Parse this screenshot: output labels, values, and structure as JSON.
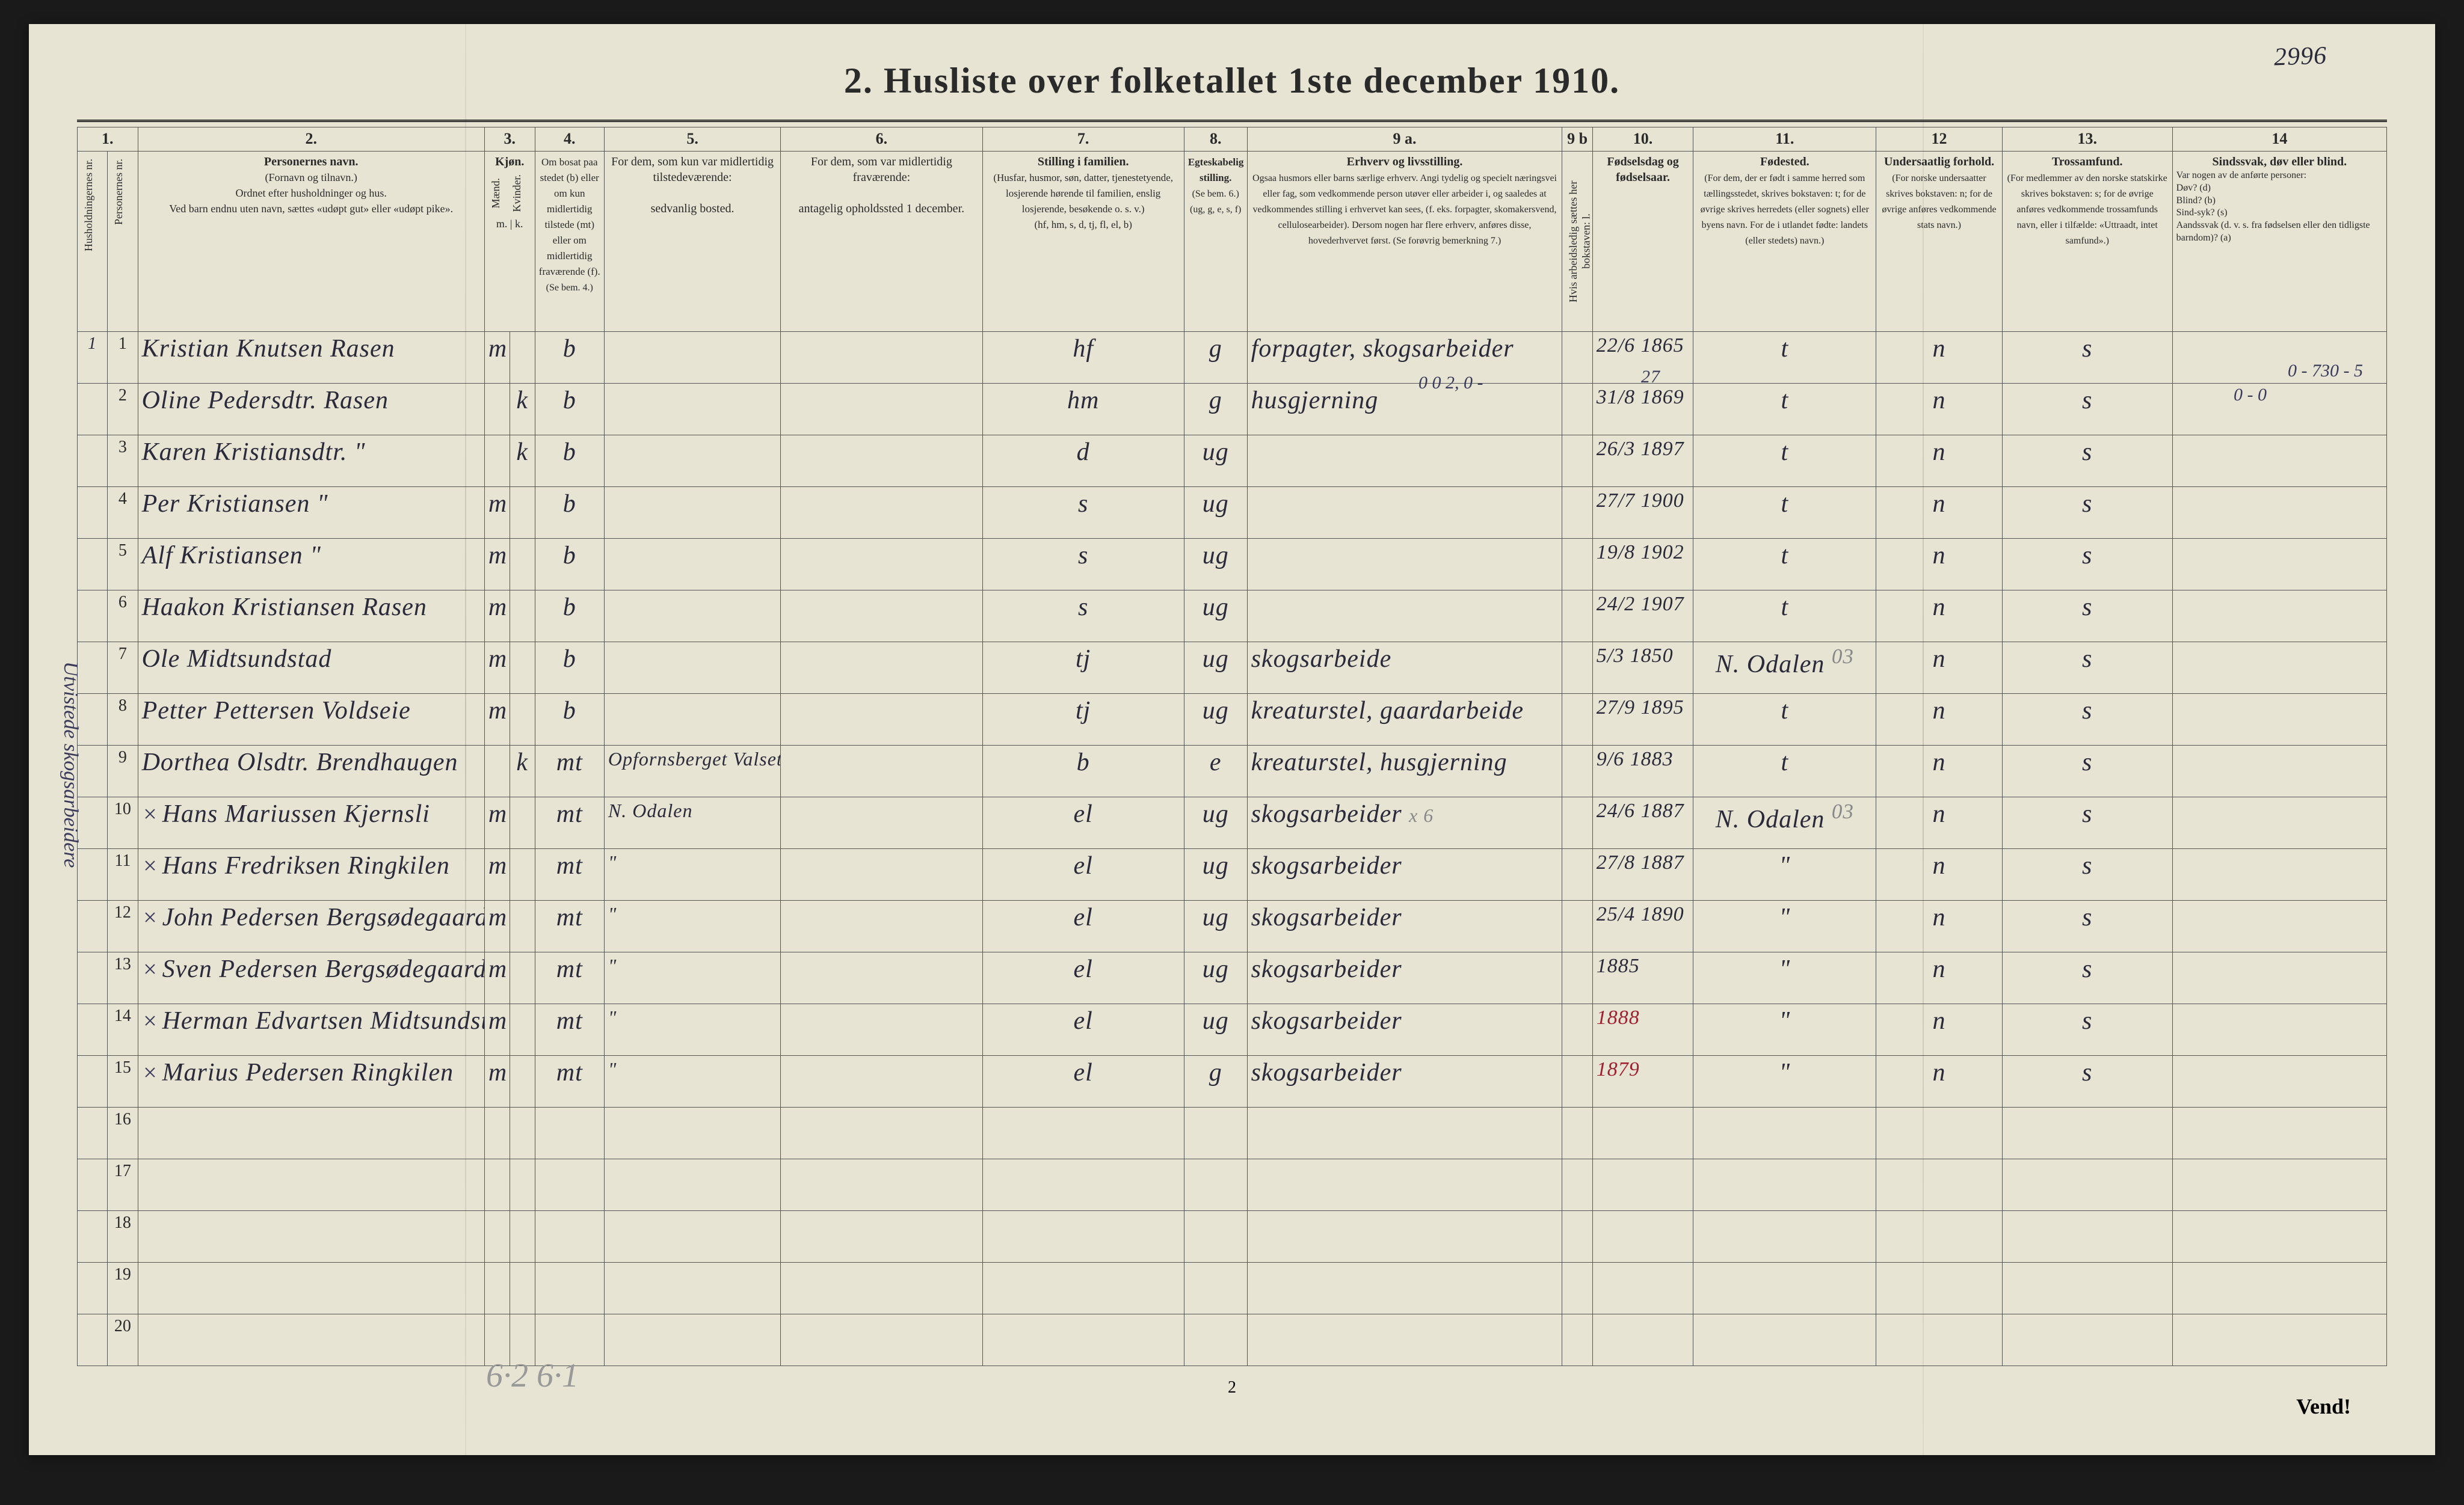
{
  "title": "2.  Husliste over folketallet 1ste december 1910.",
  "page_ink": "2996",
  "colors": {
    "paper": "#e8e4d4",
    "ink": "#2a2a3a",
    "pencil": "#888888",
    "red": "#a02030",
    "blue": "#3040a0",
    "border": "#555555"
  },
  "column_numbers": [
    "1.",
    "2.",
    "3.",
    "4.",
    "5.",
    "6.",
    "7.",
    "8.",
    "9 a.",
    "9 b",
    "10.",
    "11.",
    "12",
    "13.",
    "14"
  ],
  "headers": {
    "hushold": "Husholdningernes nr.",
    "person": "Personernes nr.",
    "name_title": "Personernes navn.",
    "name_sub": "(Fornavn og tilnavn.)\nOrdnet efter husholdninger og hus.\nVed barn endnu uten navn, sættes «udøpt gut» eller «udøpt pike».",
    "sex": "Kjøn.",
    "sex_m": "Mænd.",
    "sex_k": "Kvinder.",
    "sex_sub": "m. | k.",
    "bosat_title": "Om bosat paa stedet (b) eller om kun midlertidig tilstede (mt) eller om midlertidig fraværende (f).",
    "bosat_sub": "(Se bem. 4.)",
    "midlertidig_title": "For dem, som kun var midlertidig tilstedeværende:",
    "midlertidig_sub": "sedvanlig bosted.",
    "fravar_title": "For dem, som var midlertidig fraværende:",
    "fravar_sub": "antagelig opholdssted 1 december.",
    "stilling_fam_title": "Stilling i familien.",
    "stilling_fam_sub": "(Husfar, husmor, søn, datter, tjenestetyende, losjerende hørende til familien, enslig losjerende, besøkende o. s. v.)\n(hf, hm, s, d, tj, fl, el, b)",
    "egt_title": "Egteskabelig stilling.",
    "egt_sub": "(Se bem. 6.)\n(ug, g, e, s, f)",
    "erhverv_title": "Erhverv og livsstilling.",
    "erhverv_sub": "Ogsaa husmors eller barns særlige erhverv. Angi tydelig og specielt næringsvei eller fag, som vedkommende person utøver eller arbeider i, og saaledes at vedkommendes stilling i erhvervet kan sees, (f. eks. forpagter, skomakersvend, cellulosearbeider). Dersom nogen har flere erhverv, anføres disse, hovederhvervet først.\n(Se forøvrig bemerkning 7.)",
    "arb": "Hvis arbeidsledig sættes her bokstaven: l.",
    "fodsel_title": "Fødselsdag og fødselsaar.",
    "fodested_title": "Fødested.",
    "fodested_sub": "(For dem, der er født i samme herred som tællingsstedet, skrives bokstaven: t; for de øvrige skrives herredets (eller sognets) eller byens navn. For de i utlandet fødte: landets (eller stedets) navn.)",
    "under_title": "Undersaatlig forhold.",
    "under_sub": "(For norske undersaatter skrives bokstaven: n; for de øvrige anføres vedkommende stats navn.)",
    "tros_title": "Trossamfund.",
    "tros_sub": "(For medlemmer av den norske statskirke skrives bokstaven: s; for de øvrige anføres vedkommende trossamfunds navn, eller i tilfælde: «Uttraadt, intet samfund».)",
    "sinds_title": "Sindssvak, døv eller blind.",
    "sinds_sub": "Var nogen av de anførte personer:\nDøv?       (d)\nBlind?     (b)\nSind-syk?  (s)\nAandssvak (d. v. s. fra fødselsen eller den tidligste barndom)? (a)"
  },
  "head_annotations": {
    "upper_9a": "0 0 2, 0 -",
    "upper_9b": "27",
    "right_14": "0 - 730 - 5",
    "right_14_b": "0 - 0"
  },
  "rows": [
    {
      "h": "1",
      "p": "1",
      "name": "Kristian Knutsen Rasen",
      "m": "m",
      "k": "",
      "b": "b",
      "mt": "",
      "fr": "",
      "fam": "hf",
      "egt": "g",
      "erh": "forpagter, skogsarbeider",
      "arb": "",
      "fod": "22/6 1865",
      "sted": "t",
      "un": "n",
      "tro": "s",
      "sind": ""
    },
    {
      "h": "",
      "p": "2",
      "name": "Oline Pedersdtr. Rasen",
      "m": "",
      "k": "k",
      "b": "b",
      "mt": "",
      "fr": "",
      "fam": "hm",
      "egt": "g",
      "erh": "husgjerning",
      "arb": "",
      "fod": "31/8 1869",
      "sted": "t",
      "un": "n",
      "tro": "s",
      "sind": ""
    },
    {
      "h": "",
      "p": "3",
      "name": "Karen Kristiansdtr.  \"",
      "m": "",
      "k": "k",
      "b": "b",
      "mt": "",
      "fr": "",
      "fam": "d",
      "egt": "ug",
      "erh": "",
      "arb": "",
      "fod": "26/3 1897",
      "sted": "t",
      "un": "n",
      "tro": "s",
      "sind": ""
    },
    {
      "h": "",
      "p": "4",
      "name": "Per Kristiansen    \"",
      "m": "m",
      "k": "",
      "b": "b",
      "mt": "",
      "fr": "",
      "fam": "s",
      "egt": "ug",
      "erh": "",
      "arb": "",
      "fod": "27/7 1900",
      "sted": "t",
      "un": "n",
      "tro": "s",
      "sind": ""
    },
    {
      "h": "",
      "p": "5",
      "name": "Alf Kristiansen    \"",
      "m": "m",
      "k": "",
      "b": "b",
      "mt": "",
      "fr": "",
      "fam": "s",
      "egt": "ug",
      "erh": "",
      "arb": "",
      "fod": "19/8 1902",
      "sted": "t",
      "un": "n",
      "tro": "s",
      "sind": ""
    },
    {
      "h": "",
      "p": "6",
      "name": "Haakon Kristiansen Rasen",
      "m": "m",
      "k": "",
      "b": "b",
      "mt": "",
      "fr": "",
      "fam": "s",
      "egt": "ug",
      "erh": "",
      "arb": "",
      "fod": "24/2 1907",
      "sted": "t",
      "un": "n",
      "tro": "s",
      "sind": ""
    },
    {
      "h": "",
      "p": "7",
      "name": "Ole Midtsundstad",
      "m": "m",
      "k": "",
      "b": "b",
      "mt": "",
      "fr": "",
      "fam": "tj",
      "egt": "ug",
      "erh": "skogsarbeide",
      "arb": "",
      "fod": "5/3 1850",
      "sted": "N. Odalen",
      "un": "n",
      "tro": "s",
      "sind": "",
      "sted_note": "03"
    },
    {
      "h": "",
      "p": "8",
      "name": "Petter Pettersen Voldseie",
      "m": "m",
      "k": "",
      "b": "b",
      "mt": "",
      "fr": "",
      "fam": "tj",
      "egt": "ug",
      "erh": "kreaturstel, gaardarbeide",
      "arb": "",
      "fod": "27/9 1895",
      "sted": "t",
      "un": "n",
      "tro": "s",
      "sind": ""
    },
    {
      "h": "",
      "p": "9",
      "name": "Dorthea Olsdtr. Brendhaugen",
      "m": "",
      "k": "k",
      "b": "mt",
      "mt": "Opfornsberget Valsette",
      "fr": "",
      "fam": "b",
      "egt": "e",
      "erh": "kreaturstel, husgjerning",
      "arb": "",
      "fod": "9/6 1883",
      "sted": "t",
      "un": "n",
      "tro": "s",
      "sind": "",
      "strike": true
    },
    {
      "h": "",
      "p": "10",
      "name": "Hans Mariussen Kjernsli",
      "m": "m",
      "k": "",
      "b": "mt",
      "mt": "N. Odalen",
      "fr": "",
      "fam": "el",
      "egt": "ug",
      "erh": "skogsarbeider",
      "arb": "",
      "fod": "24/6 1887",
      "sted": "N. Odalen",
      "un": "n",
      "tro": "s",
      "sind": "",
      "x": true,
      "erh_note": "x 6",
      "sted_note": "03"
    },
    {
      "h": "",
      "p": "11",
      "name": "Hans Fredriksen Ringkilen",
      "m": "m",
      "k": "",
      "b": "mt",
      "mt": "\"",
      "fr": "",
      "fam": "el",
      "egt": "ug",
      "erh": "skogsarbeider",
      "arb": "",
      "fod": "27/8 1887",
      "sted": "\"",
      "un": "n",
      "tro": "s",
      "sind": "",
      "x": true
    },
    {
      "h": "",
      "p": "12",
      "name": "John Pedersen Bergsødegaarden",
      "m": "m",
      "k": "",
      "b": "mt",
      "mt": "\"",
      "fr": "",
      "fam": "el",
      "egt": "ug",
      "erh": "skogsarbeider",
      "arb": "",
      "fod": "25/4 1890",
      "sted": "\"",
      "un": "n",
      "tro": "s",
      "sind": "",
      "x": true
    },
    {
      "h": "",
      "p": "13",
      "name": "Sven Pedersen Bergsødegaarden",
      "m": "m",
      "k": "",
      "b": "mt",
      "mt": "\"",
      "fr": "",
      "fam": "el",
      "egt": "ug",
      "erh": "skogsarbeider",
      "arb": "",
      "fod": "1885",
      "sted": "\"",
      "un": "n",
      "tro": "s",
      "sind": "",
      "x": true
    },
    {
      "h": "",
      "p": "14",
      "name": "Herman Edvartsen Midtsundstad",
      "m": "m",
      "k": "",
      "b": "mt",
      "mt": "\"",
      "fr": "",
      "fam": "el",
      "egt": "ug",
      "erh": "skogsarbeider",
      "arb": "",
      "fod": "1888",
      "sted": "\"",
      "un": "n",
      "tro": "s",
      "sind": "",
      "x": true,
      "red": true
    },
    {
      "h": "",
      "p": "15",
      "name": "Marius Pedersen Ringkilen",
      "m": "m",
      "k": "",
      "b": "mt",
      "mt": "\"",
      "fr": "",
      "fam": "el",
      "egt": "g",
      "erh": "skogsarbeider",
      "arb": "",
      "fod": "1879",
      "sted": "\"",
      "un": "n",
      "tro": "s",
      "sind": "",
      "x": true,
      "red": true
    }
  ],
  "empty_rows": [
    16,
    17,
    18,
    19,
    20
  ],
  "footer_page": "2",
  "vend": "Vend!",
  "bottom_pencil": "6·2   6·1",
  "margin_vertical": "Utvistede skogsarbeidere"
}
